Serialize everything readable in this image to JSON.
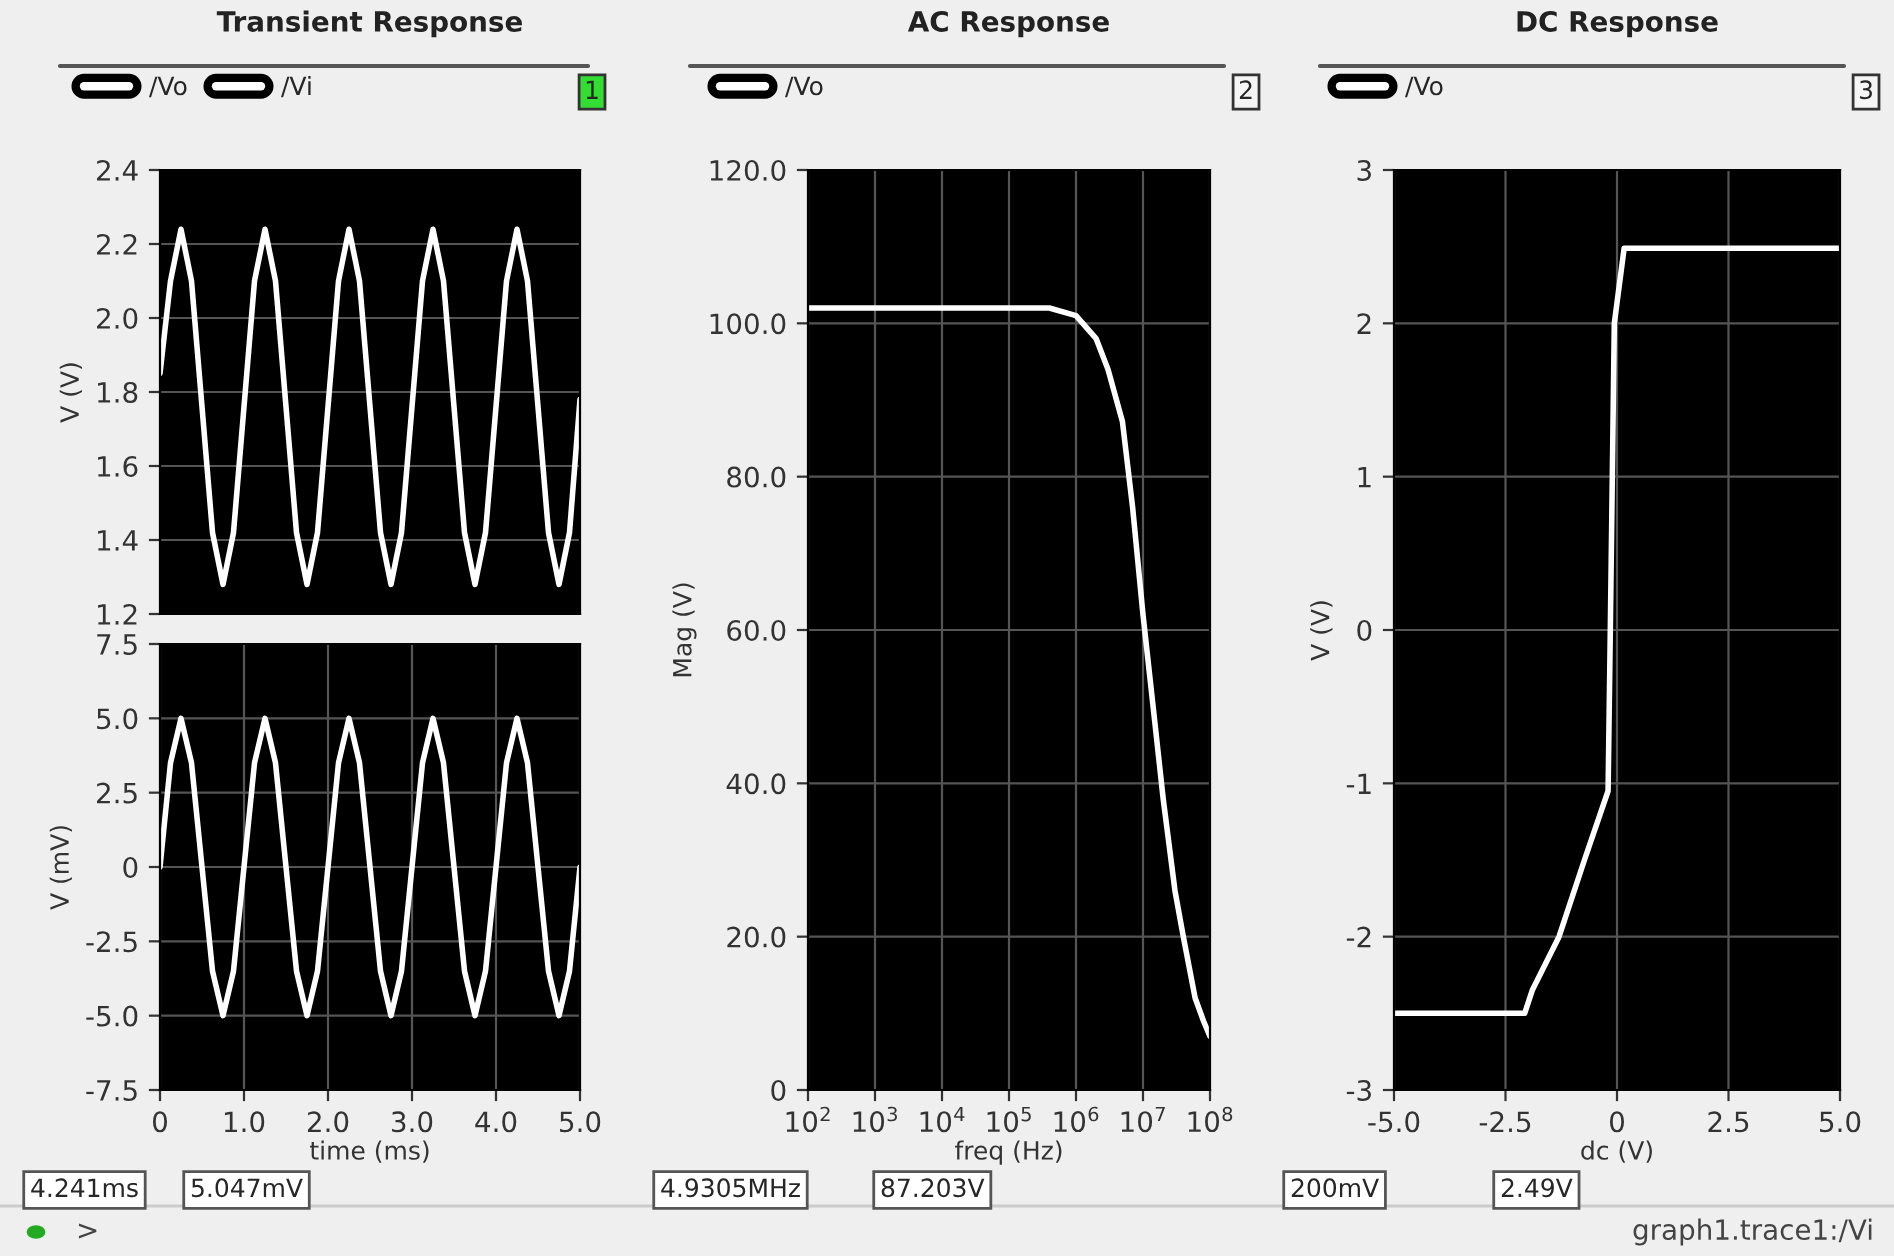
{
  "chart_data": [
    {
      "type": "line",
      "title": "Transient Response",
      "ylabel": "V (V)",
      "xlim": [
        0,
        5.0
      ],
      "ylim": [
        1.2,
        2.4
      ],
      "yticks": [
        1.2,
        1.4,
        1.6,
        1.8,
        {
          "value": 2,
          "label": "2.0"
        },
        2.2,
        2.4
      ],
      "tick_labels": "y",
      "grid": true,
      "legend": "top left",
      "annotations": [
        "1"
      ],
      "x": [
        0,
        0.125,
        0.25,
        0.375,
        0.5,
        0.625,
        0.75,
        0.875,
        1.0,
        1.125,
        1.25,
        1.375,
        1.5,
        1.625,
        1.75,
        1.875,
        2.0,
        2.125,
        2.25,
        2.375,
        2.5,
        2.625,
        2.75,
        2.875,
        3.0,
        3.125,
        3.25,
        3.375,
        3.5,
        3.625,
        3.75,
        3.875,
        4.0,
        4.125,
        4.25,
        4.375,
        4.5,
        4.625,
        4.75,
        4.875,
        5.0
      ],
      "series": [
        {
          "name": "/Vo",
          "color": "#ffffff",
          "values": [
            1.85,
            2.1,
            2.24,
            2.1,
            1.76,
            1.42,
            1.28,
            1.42,
            1.76,
            2.1,
            2.24,
            2.1,
            1.76,
            1.42,
            1.28,
            1.42,
            1.76,
            2.1,
            2.24,
            2.1,
            1.76,
            1.42,
            1.28,
            1.42,
            1.76,
            2.1,
            2.24,
            2.1,
            1.76,
            1.42,
            1.28,
            1.42,
            1.76,
            2.1,
            2.24,
            2.1,
            1.76,
            1.42,
            1.28,
            1.42,
            1.78
          ]
        }
      ]
    },
    {
      "type": "line",
      "xlabel": "time (ms)",
      "ylabel": "V (mV)",
      "xlim": [
        0,
        5.0
      ],
      "ylim": [
        -7.5,
        7.5
      ],
      "xticks": [
        0,
        {
          "value": 1,
          "label": "1.0"
        },
        {
          "value": 2,
          "label": "2.0"
        },
        {
          "value": 3,
          "label": "3.0"
        },
        {
          "value": 4,
          "label": "4.0"
        },
        {
          "value": 5,
          "label": "5.0"
        }
      ],
      "yticks": [
        -7.5,
        {
          "value": -5,
          "label": "-5.0"
        },
        -2.5,
        0,
        2.5,
        {
          "value": 5,
          "label": "5.0"
        },
        7.5
      ],
      "grid": true,
      "legend": "top left",
      "annotations": [
        "4.241ms",
        "5.047mV"
      ],
      "x": [
        0,
        0.125,
        0.25,
        0.375,
        0.5,
        0.625,
        0.75,
        0.875,
        1.0,
        1.125,
        1.25,
        1.375,
        1.5,
        1.625,
        1.75,
        1.875,
        2.0,
        2.125,
        2.25,
        2.375,
        2.5,
        2.625,
        2.75,
        2.875,
        3.0,
        3.125,
        3.25,
        3.375,
        3.5,
        3.625,
        3.75,
        3.875,
        4.0,
        4.125,
        4.25,
        4.375,
        4.5,
        4.625,
        4.75,
        4.875,
        5.0
      ],
      "series": [
        {
          "name": "/Vi",
          "color": "#ffffff",
          "values": [
            0,
            3.5,
            5.0,
            3.5,
            0,
            -3.5,
            -5.0,
            -3.5,
            0,
            3.5,
            5.0,
            3.5,
            0,
            -3.5,
            -5.0,
            -3.5,
            0,
            3.5,
            5.0,
            3.5,
            0,
            -3.5,
            -5.0,
            -3.5,
            0,
            3.5,
            5.0,
            3.5,
            0,
            -3.5,
            -5.0,
            -3.5,
            0,
            3.5,
            5.0,
            3.5,
            0,
            -3.5,
            -5.0,
            -3.5,
            0
          ]
        }
      ]
    },
    {
      "type": "line",
      "title": "AC Response",
      "xlabel": "freq (Hz)",
      "ylabel": "Mag (V)",
      "log": "x",
      "xlim": [
        100,
        100000000
      ],
      "ylim": [
        0,
        120.0
      ],
      "xticks": [
        {
          "value": 100,
          "label": "10$^{2}$"
        },
        {
          "value": 1000,
          "label": "10$^{3}$"
        },
        {
          "value": 10000,
          "label": "10$^{4}$"
        },
        {
          "value": 100000,
          "label": "10$^{5}$"
        },
        {
          "value": 1000000,
          "label": "10$^{6}$"
        },
        {
          "value": 10000000,
          "label": "10$^{7}$"
        },
        {
          "value": 100000000,
          "label": "10$^{8}$"
        }
      ],
      "yticks": [
        0,
        {
          "value": 20,
          "label": "20.0"
        },
        {
          "value": 40,
          "label": "40.0"
        },
        {
          "value": 60,
          "label": "60.0"
        },
        {
          "value": 80,
          "label": "80.0"
        },
        {
          "value": 100,
          "label": "100.0"
        },
        {
          "value": 120,
          "label": "120.0"
        }
      ],
      "grid": true,
      "legend": "top left",
      "annotations": [
        "2",
        "4.9305MHz",
        "87.203V"
      ],
      "x": [
        100,
        100000,
        400000,
        1000000,
        2000000,
        3000000,
        4930500,
        7000000,
        10000000,
        15000000,
        20000000,
        30000000,
        40000000,
        60000000,
        80000000,
        100000000
      ],
      "series": [
        {
          "name": "/Vo",
          "color": "#ffffff",
          "values": [
            102,
            102,
            102,
            101,
            98,
            94,
            87.2,
            76,
            62,
            48,
            38,
            26,
            20,
            12,
            9,
            7
          ]
        }
      ]
    },
    {
      "type": "line",
      "title": "DC Response",
      "xlabel": "dc (V)",
      "ylabel": "V (V)",
      "xlim": [
        -5.0,
        5.0
      ],
      "ylim": [
        -3,
        3
      ],
      "xticks": [
        {
          "value": -5,
          "label": "-5.0"
        },
        -2.5,
        0,
        2.5,
        {
          "value": 5,
          "label": "5.0"
        }
      ],
      "yticks": [
        -3,
        -2,
        -1,
        0,
        1,
        2,
        3
      ],
      "grid": true,
      "legend": "top left",
      "annotations": [
        "3",
        "200mV",
        "2.49V",
        ">",
        "graph1.trace1:/Vi"
      ],
      "x": [
        -5.0,
        -2.07,
        -1.9,
        -1.3,
        -0.73,
        -0.2,
        -0.15,
        -0.06,
        0.16,
        5.0
      ],
      "series": [
        {
          "name": "/Vo",
          "color": "#ffffff",
          "values": [
            -2.5,
            -2.5,
            -2.35,
            -2.0,
            -1.5,
            -1.05,
            0,
            2.0,
            2.49,
            2.49
          ]
        }
      ]
    }
  ]
}
